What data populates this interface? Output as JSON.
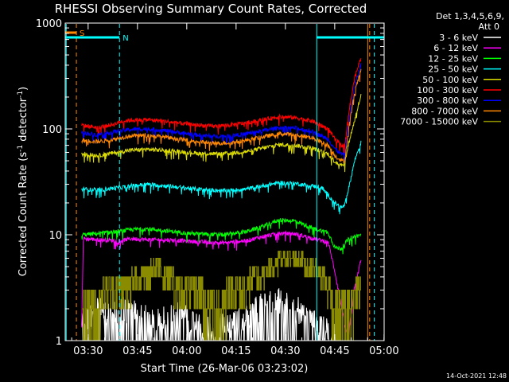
{
  "chart_data": {
    "type": "line",
    "title": "RHESSI Observing Summary Count Rates, Corrected",
    "xlabel": "Start Time (26-Mar-06 03:23:02)",
    "ylabel_main": "Corrected Count Rate (s",
    "ylabel_exp1": "-1",
    "ylabel_mid": " detector",
    "ylabel_exp2": "-1",
    "ylabel_end": ")",
    "yscale": "log",
    "ylim": [
      1,
      1000
    ],
    "xlim_minutes": [
      0,
      97
    ],
    "x_tick_labels": [
      "03:30",
      "03:45",
      "04:00",
      "04:15",
      "04:30",
      "04:45",
      "05:00"
    ],
    "x_tick_minutes": [
      6.97,
      21.97,
      36.97,
      51.97,
      66.97,
      81.97,
      96.97
    ],
    "y_tick_labels": [
      "1",
      "10",
      "100",
      "1000"
    ],
    "y_tick_values": [
      1,
      10,
      100,
      1000
    ],
    "legend": {
      "header_line1": "Det 1,3,4,5,6,9,",
      "header_line2": "Att 0",
      "entries": [
        "3 - 6 keV",
        "6 - 12 keV",
        "12 - 25 keV",
        "25 - 50 keV",
        "50 - 100 keV",
        "100 - 300 keV",
        "300 - 800 keV",
        "800 - 7000 keV",
        "7000 - 15000 keV"
      ]
    },
    "flags": [
      {
        "label": "S",
        "color": "#ff8800",
        "x_range": [
          0,
          3.4
        ]
      },
      {
        "label": "N",
        "color": "#00ffff",
        "x_range": [
          0,
          16.5
        ]
      },
      {
        "label": "",
        "color": "#00ffff",
        "x_range": [
          76.5,
          97
        ]
      }
    ],
    "vlines": [
      {
        "x": 0.3,
        "color": "#00ffff",
        "dashed": false
      },
      {
        "x": 3.4,
        "color": "#ff8800",
        "dashed": true
      },
      {
        "x": 16.5,
        "color": "#00ffff",
        "dashed": true
      },
      {
        "x": 76.5,
        "color": "#00ffff",
        "dashed": false
      },
      {
        "x": 92.0,
        "color": "#ff8800",
        "dashed": false
      },
      {
        "x": 92.6,
        "color": "#ff8800",
        "dashed": true
      },
      {
        "x": 94.0,
        "color": "#00ffff",
        "dashed": true
      }
    ],
    "series": [
      {
        "name": "3 - 6 keV",
        "color": "#ffffff",
        "noise": "spiky",
        "points": [
          [
            5,
            1.2
          ],
          [
            10,
            1.8
          ],
          [
            14,
            1.5
          ],
          [
            20,
            1.9
          ],
          [
            27,
            1.3
          ],
          [
            35,
            1.6
          ],
          [
            42,
            1.2
          ],
          [
            50,
            1.2
          ],
          [
            55,
            1.5
          ],
          [
            62,
            2.2
          ],
          [
            68,
            2.0
          ],
          [
            72,
            1.7
          ],
          [
            76,
            1.3
          ],
          [
            82,
            1.0
          ]
        ]
      },
      {
        "name": "6 - 12 keV",
        "color": "#ff00ff",
        "noise": "normal",
        "points": [
          [
            5,
            1.3
          ],
          [
            5.5,
            9.2
          ],
          [
            10,
            9.0
          ],
          [
            17,
            8.8
          ],
          [
            20,
            9.2
          ],
          [
            25,
            9.0
          ],
          [
            33,
            8.9
          ],
          [
            40,
            8.6
          ],
          [
            48,
            8.4
          ],
          [
            55,
            8.8
          ],
          [
            60,
            9.6
          ],
          [
            65,
            10.3
          ],
          [
            70,
            10.2
          ],
          [
            75,
            9.3
          ],
          [
            80,
            8.5
          ],
          [
            82,
            4.5
          ],
          [
            86,
            1.0
          ],
          [
            88,
            3.2
          ],
          [
            90,
            5.8
          ]
        ]
      },
      {
        "name": "12 - 25 keV",
        "color": "#00ff00",
        "noise": "normal",
        "points": [
          [
            5,
            10.0
          ],
          [
            10,
            10.3
          ],
          [
            17,
            10.8
          ],
          [
            20,
            11.2
          ],
          [
            25,
            11.4
          ],
          [
            33,
            10.7
          ],
          [
            40,
            10.2
          ],
          [
            48,
            10.0
          ],
          [
            55,
            10.7
          ],
          [
            60,
            12.0
          ],
          [
            65,
            13.8
          ],
          [
            70,
            13.5
          ],
          [
            75,
            11.6
          ],
          [
            80,
            10.5
          ],
          [
            82,
            7.6
          ],
          [
            84,
            7.4
          ],
          [
            85,
            8.2
          ],
          [
            86.5,
            9.3
          ],
          [
            88,
            9.6
          ],
          [
            90,
            10.0
          ]
        ]
      },
      {
        "name": "25 - 50 keV",
        "color": "#00ffff",
        "noise": "normal",
        "points": [
          [
            5,
            27
          ],
          [
            10,
            26.5
          ],
          [
            17,
            28
          ],
          [
            20,
            29
          ],
          [
            25,
            30
          ],
          [
            33,
            28.5
          ],
          [
            40,
            27
          ],
          [
            48,
            26
          ],
          [
            55,
            27
          ],
          [
            60,
            29
          ],
          [
            65,
            31
          ],
          [
            70,
            30.5
          ],
          [
            75,
            29
          ],
          [
            78,
            28
          ],
          [
            82,
            20
          ],
          [
            84,
            18
          ],
          [
            85,
            19
          ],
          [
            86.5,
            30
          ],
          [
            88,
            50
          ],
          [
            90,
            75
          ]
        ]
      },
      {
        "name": "50 - 100 keV",
        "color": "#dddd00",
        "noise": "normal",
        "points": [
          [
            5,
            58
          ],
          [
            10,
            56
          ],
          [
            17,
            61
          ],
          [
            20,
            63
          ],
          [
            25,
            64
          ],
          [
            33,
            62
          ],
          [
            40,
            59
          ],
          [
            48,
            58
          ],
          [
            55,
            61
          ],
          [
            60,
            66
          ],
          [
            65,
            71
          ],
          [
            70,
            70
          ],
          [
            75,
            66
          ],
          [
            80,
            58
          ],
          [
            82,
            49
          ],
          [
            84,
            46
          ],
          [
            85,
            47
          ],
          [
            86.5,
            80
          ],
          [
            88,
            120
          ],
          [
            90,
            210
          ]
        ]
      },
      {
        "name": "100 - 300 keV",
        "color": "#ff0000",
        "noise": "normal",
        "points": [
          [
            5,
            108
          ],
          [
            10,
            103
          ],
          [
            15,
            111
          ],
          [
            17,
            118
          ],
          [
            20,
            121
          ],
          [
            25,
            122
          ],
          [
            30,
            119
          ],
          [
            35,
            113
          ],
          [
            40,
            109
          ],
          [
            45,
            106
          ],
          [
            50,
            109
          ],
          [
            55,
            114
          ],
          [
            60,
            122
          ],
          [
            65,
            130
          ],
          [
            70,
            128
          ],
          [
            75,
            119
          ],
          [
            80,
            100
          ],
          [
            82,
            80
          ],
          [
            84,
            70
          ],
          [
            85,
            70
          ],
          [
            86.5,
            160
          ],
          [
            88,
            300
          ],
          [
            90,
            480
          ]
        ]
      },
      {
        "name": "300 - 800 keV",
        "color": "#0000ff",
        "noise": "normal",
        "points": [
          [
            5,
            92
          ],
          [
            10,
            88
          ],
          [
            15,
            94
          ],
          [
            17,
            96
          ],
          [
            20,
            99
          ],
          [
            25,
            100
          ],
          [
            30,
            97
          ],
          [
            35,
            92
          ],
          [
            40,
            88
          ],
          [
            45,
            85
          ],
          [
            50,
            86
          ],
          [
            55,
            90
          ],
          [
            60,
            96
          ],
          [
            65,
            103
          ],
          [
            70,
            102
          ],
          [
            75,
            95
          ],
          [
            80,
            80
          ],
          [
            82,
            65
          ],
          [
            84,
            58
          ],
          [
            85,
            57
          ],
          [
            86.5,
            130
          ],
          [
            88,
            250
          ],
          [
            90,
            410
          ]
        ]
      },
      {
        "name": "800 - 7000 keV",
        "color": "#ff8800",
        "noise": "normal",
        "points": [
          [
            5,
            78
          ],
          [
            10,
            76
          ],
          [
            15,
            80
          ],
          [
            17,
            83
          ],
          [
            20,
            86
          ],
          [
            25,
            87
          ],
          [
            30,
            84
          ],
          [
            35,
            80
          ],
          [
            40,
            76
          ],
          [
            45,
            73
          ],
          [
            50,
            74
          ],
          [
            55,
            78
          ],
          [
            60,
            84
          ],
          [
            65,
            90
          ],
          [
            70,
            88
          ],
          [
            75,
            83
          ],
          [
            80,
            70
          ],
          [
            82,
            56
          ],
          [
            84,
            50
          ],
          [
            85,
            50
          ],
          [
            86.5,
            115
          ],
          [
            88,
            220
          ],
          [
            90,
            360
          ]
        ]
      },
      {
        "name": "7000 - 15000 keV",
        "color": "#8b8b00",
        "noise": "step",
        "points": [
          [
            5,
            1.5
          ],
          [
            8,
            2.3
          ],
          [
            12,
            2.6
          ],
          [
            15,
            2.8
          ],
          [
            20,
            3.5
          ],
          [
            25,
            4.3
          ],
          [
            28,
            5.0
          ],
          [
            32,
            3.8
          ],
          [
            35,
            3.0
          ],
          [
            40,
            2.7
          ],
          [
            45,
            2.2
          ],
          [
            50,
            2.6
          ],
          [
            55,
            3.3
          ],
          [
            60,
            4.3
          ],
          [
            65,
            5.6
          ],
          [
            70,
            6.5
          ],
          [
            74,
            5.0
          ],
          [
            78,
            4.3
          ],
          [
            80,
            3.2
          ],
          [
            82,
            2.0
          ],
          [
            84,
            1.5
          ],
          [
            86,
            1.8
          ],
          [
            88,
            2.5
          ],
          [
            90,
            3.5
          ]
        ]
      }
    ]
  },
  "footer": {
    "date_stamp": "14-Oct-2021 12:48"
  }
}
